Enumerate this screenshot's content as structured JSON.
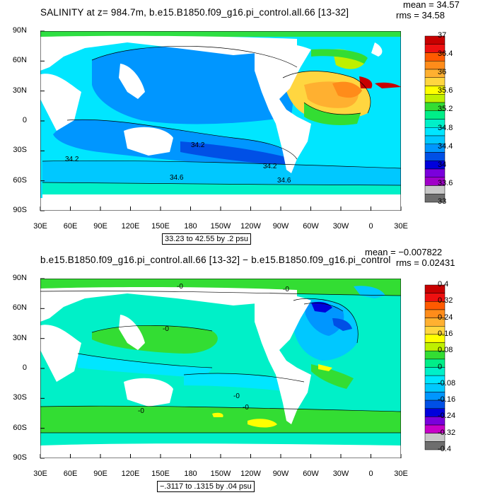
{
  "panels": [
    {
      "title": "SALINITY at z= 984.7m, b.e15.B1850.f09_g16.pi_control.all.66 [13-32]",
      "mean": "mean = 34.57",
      "rms": "rms = 34.58",
      "range_note": "33.23 to 42.55 by .2 psu",
      "lat_labels": [
        "90N",
        "60N",
        "30N",
        "0",
        "30S",
        "60S",
        "90S"
      ],
      "lon_labels": [
        "30E",
        "60E",
        "90E",
        "120E",
        "150E",
        "180",
        "150W",
        "120W",
        "90W",
        "60W",
        "30W",
        "0",
        "30E"
      ],
      "contour_labels": [
        "34.2",
        "34.2",
        "34.6",
        "34.2",
        "34.6"
      ],
      "colorbar": {
        "labels": [
          "37",
          "36.4",
          "36",
          "35.6",
          "35.2",
          "34.8",
          "34.4",
          "34",
          "33.6",
          "33"
        ],
        "colors": [
          "#c80000",
          "#ee1010",
          "#ff5a00",
          "#ff8c1a",
          "#ffb030",
          "#ffd640",
          "#ffff00",
          "#bff000",
          "#33dd33",
          "#00ee88",
          "#00f0c8",
          "#00e6ff",
          "#00c8ff",
          "#0096ff",
          "#0050e6",
          "#0000dc",
          "#7a00dc",
          "#a000c8",
          "#c8c8c8",
          "#6e6e6e"
        ]
      }
    },
    {
      "title": "b.e15.B1850.f09_g16.pi_control.all.66 [13-32] − b.e15.B1850.f09_g16.pi_control",
      "mean": "mean = −0.007822",
      "rms": "rms = 0.02431",
      "range_note": "−.3117 to .1315 by .04 psu",
      "lat_labels": [
        "90N",
        "60N",
        "30N",
        "0",
        "30S",
        "60S",
        "90S"
      ],
      "lon_labels": [
        "30E",
        "60E",
        "90E",
        "120E",
        "150E",
        "180",
        "150W",
        "120W",
        "90W",
        "60W",
        "30W",
        "0",
        "30E"
      ],
      "contour_labels": [
        "-0",
        "-0",
        "-0",
        "-0",
        "-0",
        "-0"
      ],
      "colorbar": {
        "labels": [
          "0.4",
          "0.32",
          "0.24",
          "0.16",
          "0.08",
          "0",
          "-0.08",
          "-0.16",
          "-0.24",
          "-0.32",
          "-0.4"
        ],
        "colors": [
          "#c80000",
          "#ee1010",
          "#ff5a00",
          "#ff8c1a",
          "#ffb030",
          "#ffd640",
          "#ffff00",
          "#bff000",
          "#33dd33",
          "#00ee88",
          "#00f0c8",
          "#00e6ff",
          "#00c8ff",
          "#0096ff",
          "#0050e6",
          "#0000dc",
          "#7a00dc",
          "#c800c8",
          "#c8c8c8",
          "#6e6e6e"
        ]
      }
    }
  ],
  "colors": {
    "land": "#ffffff",
    "top_base": "#00e6ff",
    "bot_base": "#00f0c8"
  }
}
